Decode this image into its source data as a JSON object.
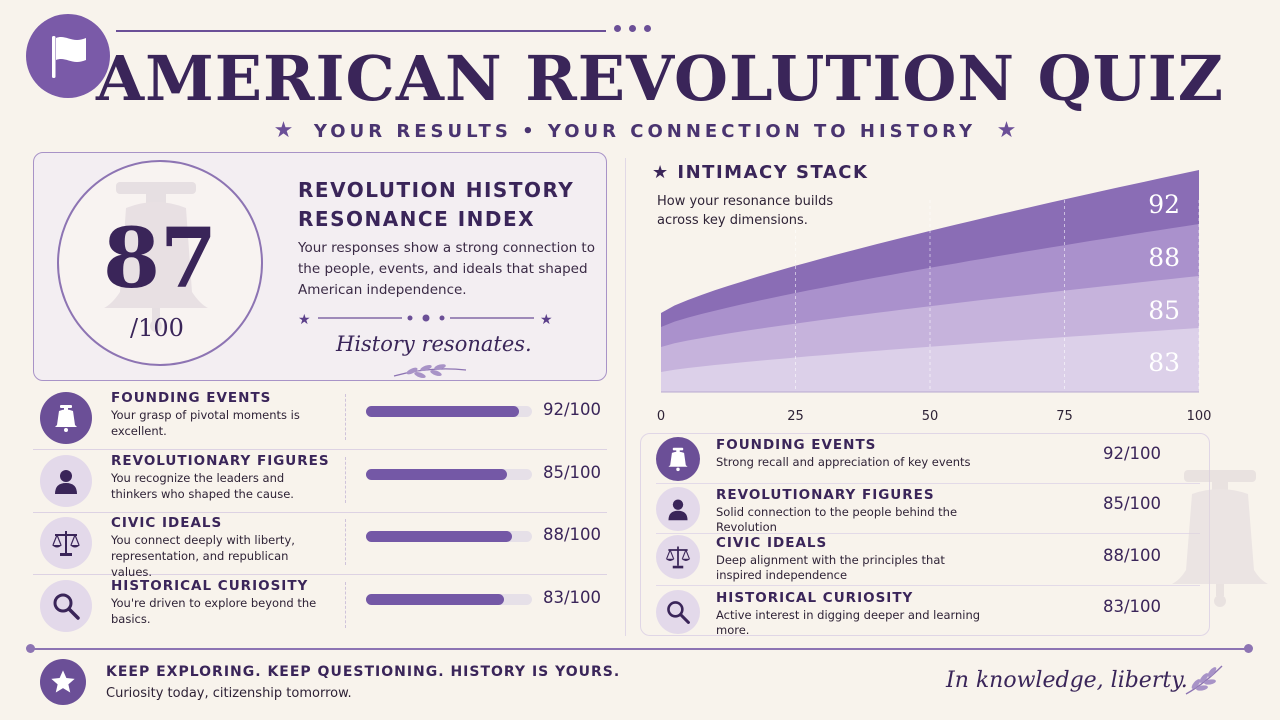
{
  "header": {
    "title": "AMERICAN REVOLUTION QUIZ",
    "subtitle": "YOUR RESULTS • YOUR CONNECTION TO HISTORY",
    "flag_icon": "flag-icon",
    "accent_color": "#6b4f97"
  },
  "index": {
    "score": "87",
    "denominator": "/100",
    "title_line1": "REVOLUTION HISTORY",
    "title_line2": "RESONANCE INDEX",
    "description": "Your responses show a strong connection to the people, events, and ideals that shaped American independence.",
    "tagline": "History resonates."
  },
  "categories": [
    {
      "title": "FOUNDING EVENTS",
      "left_desc": "Your grasp of pivotal moments is excellent.",
      "right_desc": "Strong recall and appreciation of key events",
      "score_text": "92/100",
      "value": 92,
      "icon": "liberty-bell-icon"
    },
    {
      "title": "REVOLUTIONARY FIGURES",
      "left_desc": "You recognize the leaders and thinkers who shaped the cause.",
      "right_desc": "Solid connection to the people behind the Revolution",
      "score_text": "85/100",
      "value": 85,
      "icon": "person-icon"
    },
    {
      "title": "CIVIC IDEALS",
      "left_desc": "You connect deeply with liberty, representation, and republican values.",
      "right_desc": "Deep alignment with the principles that inspired independence",
      "score_text": "88/100",
      "value": 88,
      "icon": "scales-icon"
    },
    {
      "title": "HISTORICAL CURIOSITY",
      "left_desc": "You're driven to explore beyond the basics.",
      "right_desc": "Active interest in digging deeper and learning more.",
      "score_text": "83/100",
      "value": 83,
      "icon": "magnifier-icon"
    }
  ],
  "chart": {
    "title": "INTIMACY STACK",
    "subtitle": "How your resonance builds across key dimensions."
  },
  "chart_data": {
    "type": "area",
    "x": [
      0,
      25,
      50,
      75,
      100
    ],
    "xlim": [
      0,
      100
    ],
    "xticks": [
      "0",
      "25",
      "50",
      "75",
      "100"
    ],
    "stacked": true,
    "series": [
      {
        "label": "83",
        "values": [
          9,
          20,
          40,
          62,
          83
        ]
      },
      {
        "label": "85",
        "values": [
          9,
          20,
          40,
          62,
          85
        ]
      },
      {
        "label": "88",
        "values": [
          9,
          20,
          40,
          62,
          88
        ]
      },
      {
        "label": "92",
        "values": [
          9,
          20,
          40,
          62,
          92
        ]
      }
    ],
    "colors": [
      "#dcd0e9",
      "#c6b3dc",
      "#aa91cc",
      "#8a6db5"
    ],
    "grid": "dashed vertical at 25, 50, 75, 100"
  },
  "footer": {
    "title": "KEEP EXPLORING. KEEP QUESTIONING. HISTORY IS YOURS.",
    "subtitle": "Curiosity today, citizenship tomorrow.",
    "script": "In knowledge, liberty.",
    "star_icon": "star-icon"
  }
}
